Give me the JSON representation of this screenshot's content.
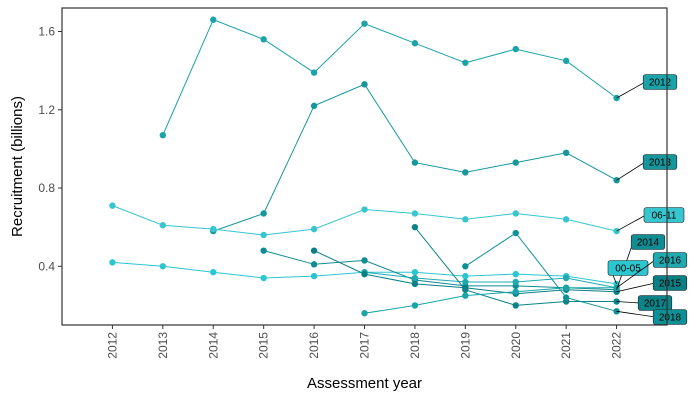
{
  "chart_data": {
    "type": "line",
    "xlabel": "Assessment year",
    "ylabel": "Recruitment (billions)",
    "x_ticks": [
      "2012",
      "2013",
      "2014",
      "2015",
      "2016",
      "2017",
      "2018",
      "2019",
      "2020",
      "2021",
      "2022"
    ],
    "y_ticks": [
      "0.4",
      "0.8",
      "1.2",
      "1.6"
    ],
    "xlim": [
      2011.0,
      2023.0
    ],
    "ylim": [
      0.1,
      1.72
    ],
    "grid": false,
    "legend": "none",
    "series": [
      {
        "name": "2012",
        "color": "#1aa3a8",
        "label_color": "#1aa3a8",
        "points": [
          [
            2013,
            1.07
          ],
          [
            2014,
            1.66
          ],
          [
            2015,
            1.56
          ],
          [
            2016,
            1.39
          ],
          [
            2017,
            1.64
          ],
          [
            2018,
            1.54
          ],
          [
            2019,
            1.44
          ],
          [
            2020,
            1.51
          ],
          [
            2021,
            1.45
          ],
          [
            2022,
            1.26
          ]
        ]
      },
      {
        "name": "2013",
        "color": "#15979c",
        "label_color": "#15979c",
        "points": [
          [
            2014,
            0.58
          ],
          [
            2015,
            0.67
          ],
          [
            2016,
            1.22
          ],
          [
            2017,
            1.33
          ],
          [
            2018,
            0.93
          ],
          [
            2019,
            0.88
          ],
          [
            2020,
            0.93
          ],
          [
            2021,
            0.98
          ],
          [
            2022,
            0.84
          ]
        ]
      },
      {
        "name": "06-11",
        "color": "#37c6cf",
        "label_color": "#37c6cf",
        "points": [
          [
            2012,
            0.71
          ],
          [
            2013,
            0.61
          ],
          [
            2014,
            0.59
          ],
          [
            2015,
            0.56
          ],
          [
            2016,
            0.59
          ],
          [
            2017,
            0.69
          ],
          [
            2018,
            0.67
          ],
          [
            2019,
            0.64
          ],
          [
            2020,
            0.67
          ],
          [
            2021,
            0.64
          ],
          [
            2022,
            0.58
          ]
        ]
      },
      {
        "name": "00-05",
        "color": "#2bc6d0",
        "label_color": "#2bc6d0",
        "points": [
          [
            2012,
            0.42
          ],
          [
            2013,
            0.4
          ],
          [
            2014,
            0.37
          ],
          [
            2015,
            0.34
          ],
          [
            2016,
            0.35
          ],
          [
            2017,
            0.37
          ],
          [
            2018,
            0.37
          ],
          [
            2019,
            0.35
          ],
          [
            2020,
            0.36
          ],
          [
            2021,
            0.35
          ],
          [
            2022,
            0.31
          ]
        ]
      },
      {
        "name": "2014",
        "color": "#0f8d92",
        "label_color": "#0f8d92",
        "points": [
          [
            2015,
            0.48
          ],
          [
            2016,
            0.41
          ],
          [
            2017,
            0.43
          ],
          [
            2018,
            0.33
          ],
          [
            2019,
            0.3
          ],
          [
            2020,
            0.3
          ],
          [
            2021,
            0.29
          ],
          [
            2022,
            0.28
          ]
        ]
      },
      {
        "name": "2016",
        "color": "#1faab0",
        "label_color": "#1faab0",
        "points": [
          [
            2017,
            0.37
          ],
          [
            2018,
            0.34
          ],
          [
            2019,
            0.32
          ],
          [
            2020,
            0.32
          ],
          [
            2021,
            0.34
          ],
          [
            2022,
            0.29
          ]
        ]
      },
      {
        "name": "2015",
        "color": "#0a7f84",
        "label_color": "#0a7f84",
        "points": [
          [
            2016,
            0.48
          ],
          [
            2017,
            0.36
          ],
          [
            2018,
            0.31
          ],
          [
            2019,
            0.29
          ],
          [
            2020,
            0.26
          ],
          [
            2021,
            0.28
          ],
          [
            2022,
            0.27
          ]
        ]
      },
      {
        "name": "2017",
        "color": "#0b8388",
        "label_color": "#0b8388",
        "points": [
          [
            2018,
            0.6
          ],
          [
            2019,
            0.28
          ],
          [
            2020,
            0.2
          ],
          [
            2021,
            0.22
          ],
          [
            2022,
            0.22
          ]
        ]
      },
      {
        "name": "2018",
        "color": "#0d9196",
        "label_color": "#0d9196",
        "points": [
          [
            2019,
            0.4
          ],
          [
            2020,
            0.57
          ],
          [
            2021,
            0.24
          ],
          [
            2022,
            0.17
          ]
        ]
      },
      {
        "name": "",
        "color": "#17a5aa",
        "label_color": "#17a5aa",
        "points": [
          [
            2017,
            0.16
          ],
          [
            2018,
            0.2
          ],
          [
            2019,
            0.25
          ],
          [
            2020,
            0.27
          ],
          [
            2021,
            0.29
          ],
          [
            2022,
            0.29
          ]
        ]
      }
    ],
    "labels": [
      {
        "text": "2012",
        "series": "2012"
      },
      {
        "text": "2013",
        "series": "2013"
      },
      {
        "text": "06-11",
        "series": "06-11"
      },
      {
        "text": "2014",
        "series": "2014"
      },
      {
        "text": "00-05",
        "series": "00-05"
      },
      {
        "text": "2016",
        "series": "2016"
      },
      {
        "text": "2015",
        "series": "2015"
      },
      {
        "text": "2017",
        "series": "2017"
      },
      {
        "text": "2018",
        "series": "2018"
      }
    ]
  }
}
